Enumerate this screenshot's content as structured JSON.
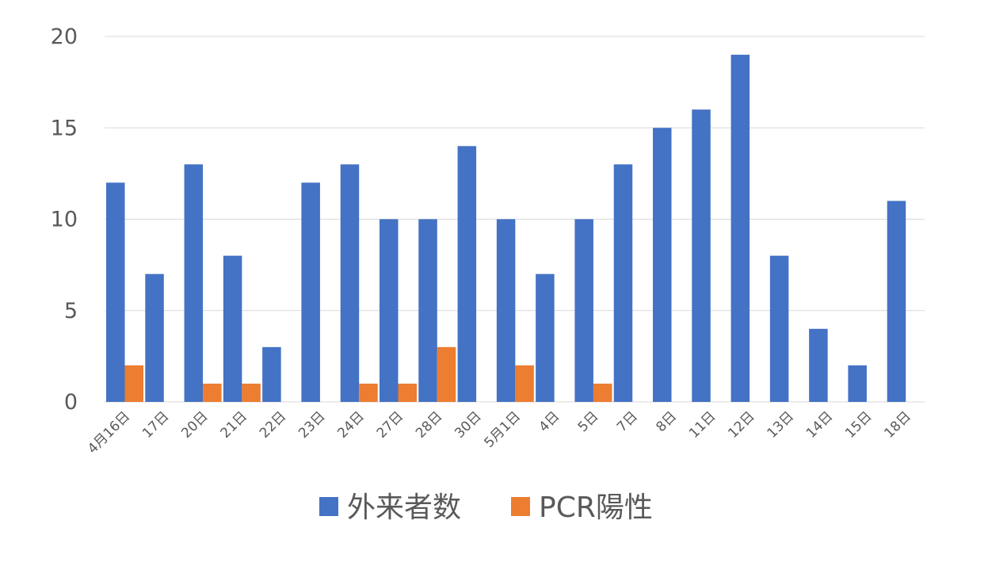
{
  "chart_data": {
    "type": "bar",
    "categories": [
      "4月16日",
      "17日",
      "20日",
      "21日",
      "22日",
      "23日",
      "24日",
      "27日",
      "28日",
      "30日",
      "5月1日",
      "4日",
      "5日",
      "7日",
      "8日",
      "11日",
      "12日",
      "13日",
      "14日",
      "15日",
      "18日"
    ],
    "series": [
      {
        "name": "外来者数",
        "color": "#4472c4",
        "values": [
          12,
          7,
          13,
          8,
          3,
          12,
          13,
          10,
          10,
          14,
          10,
          7,
          10,
          13,
          15,
          16,
          19,
          8,
          4,
          2,
          11
        ]
      },
      {
        "name": "PCR陽性",
        "color": "#ed7d31",
        "values": [
          2,
          0,
          1,
          1,
          0,
          0,
          1,
          1,
          3,
          0,
          2,
          0,
          1,
          0,
          0,
          0,
          0,
          0,
          0,
          0,
          0
        ]
      }
    ],
    "ylim": [
      0,
      20
    ],
    "yticks": [
      0,
      5,
      10,
      15,
      20
    ],
    "grid": true,
    "legend_position": "bottom",
    "title": "",
    "xlabel": "",
    "ylabel": ""
  }
}
